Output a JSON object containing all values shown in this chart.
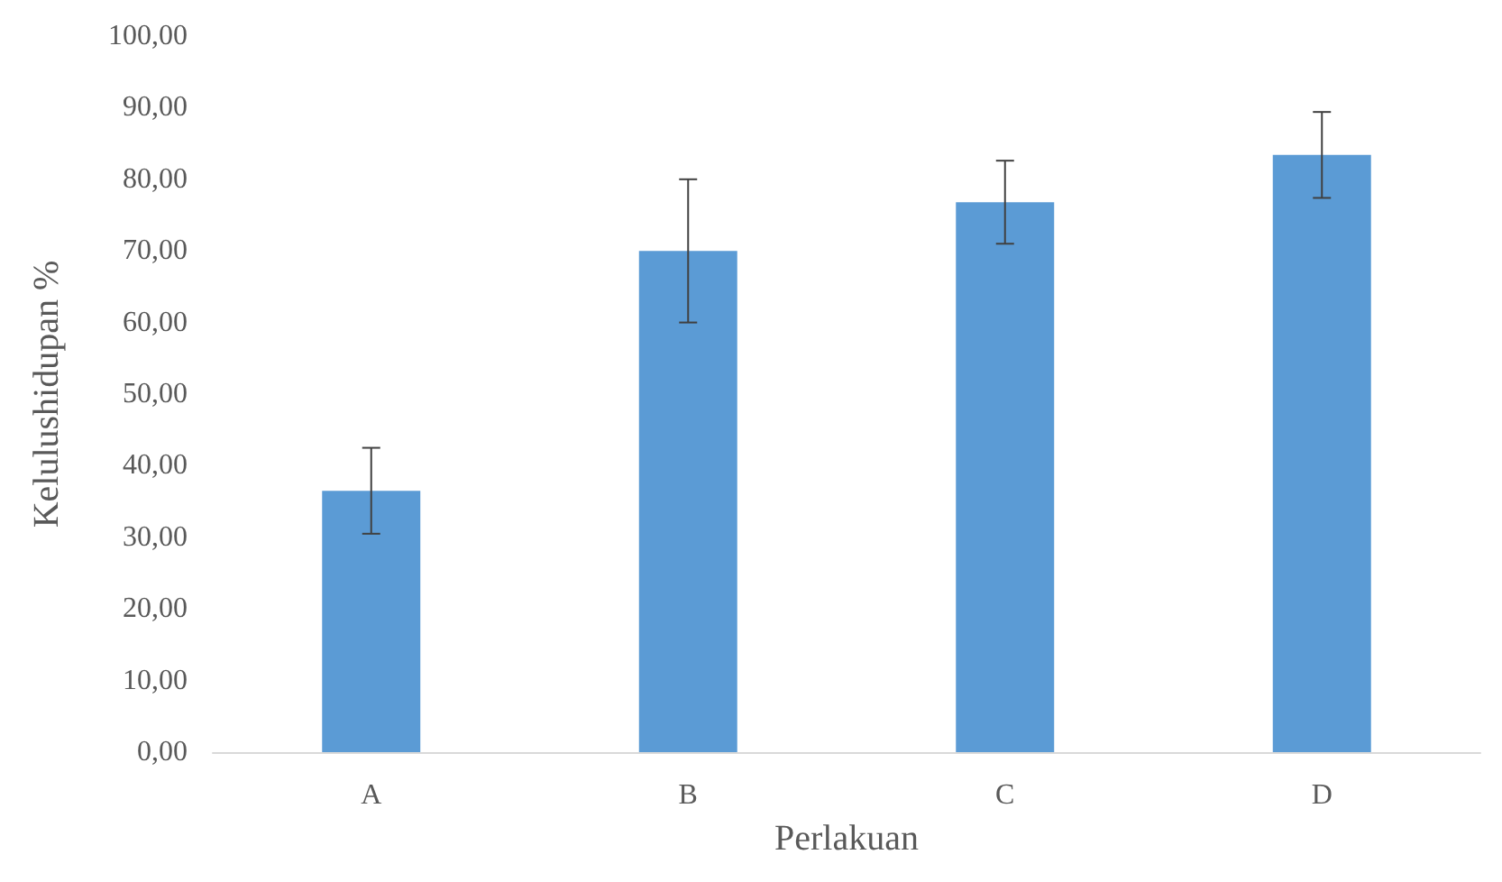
{
  "chart_data": {
    "type": "bar",
    "xlabel": "Perlakuan",
    "ylabel": "Kelulushidupan %",
    "categories": [
      "A",
      "B",
      "C",
      "D"
    ],
    "values": [
      36.5,
      70,
      76.8,
      83.4
    ],
    "errors": [
      6,
      10,
      5.8,
      6
    ],
    "color": "#5b9bd5",
    "ylim": [
      0,
      100
    ],
    "yticks": [
      {
        "value": 0,
        "label": "0,00"
      },
      {
        "value": 10,
        "label": "10,00"
      },
      {
        "value": 20,
        "label": "20,00"
      },
      {
        "value": 30,
        "label": "30,00"
      },
      {
        "value": 40,
        "label": "40,00"
      },
      {
        "value": 50,
        "label": "50,00"
      },
      {
        "value": 60,
        "label": "60,00"
      },
      {
        "value": 70,
        "label": "70,00"
      },
      {
        "value": 80,
        "label": "80,00"
      },
      {
        "value": 90,
        "label": "90,00"
      },
      {
        "value": 100,
        "label": "100,00"
      }
    ],
    "grid": false
  }
}
